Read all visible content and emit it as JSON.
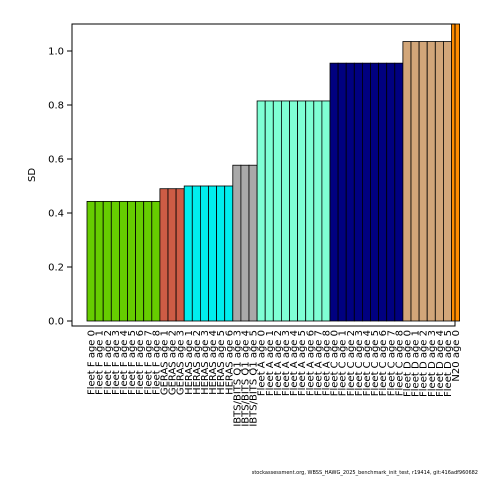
{
  "chart_data": {
    "type": "bar",
    "ylabel": "SD",
    "xlabel": "",
    "title": "",
    "ylim": [
      0,
      1.1
    ],
    "yticks": [
      "0.0",
      "0.2",
      "0.4",
      "0.6",
      "0.8",
      "1.0"
    ],
    "grid": false,
    "categories": [
      "Fleet F age 0",
      "Fleet F age 1",
      "Fleet F age 2",
      "Fleet F age 3",
      "Fleet F age 4",
      "Fleet F age 5",
      "Fleet F age 6",
      "Fleet F age 7",
      "Fleet F age 8",
      "GERAS age 1",
      "GERAS age 2",
      "GERAS age 3",
      "HERAS age 1",
      "HERAS age 2",
      "HERAS age 3",
      "HERAS age 4",
      "HERAS age 5",
      "HERAS age 6",
      "IBTS/BITS Q1 age 3",
      "IBTS/BITS Q1 age 4",
      "IBTS/BITS Q1 age 5",
      "Fleet A age 0",
      "Fleet A age 1",
      "Fleet A age 2",
      "Fleet A age 3",
      "Fleet A age 4",
      "Fleet A age 5",
      "Fleet A age 6",
      "Fleet A age 7",
      "Fleet A age 8",
      "Fleet C age 0",
      "Fleet C age 1",
      "Fleet C age 2",
      "Fleet C age 3",
      "Fleet C age 4",
      "Fleet C age 5",
      "Fleet C age 6",
      "Fleet C age 7",
      "Fleet C age 8",
      "Fleet D age 0",
      "Fleet D age 1",
      "Fleet D age 2",
      "Fleet D age 3",
      "Fleet D age 4",
      "Fleet D age 5",
      "N20 age 0"
    ],
    "groups": [
      {
        "count": 9,
        "value": 0.443,
        "color": "#66cd00"
      },
      {
        "count": 3,
        "value": 0.49,
        "color": "#cd5c45"
      },
      {
        "count": 6,
        "value": 0.5,
        "color": "#00eeee"
      },
      {
        "count": 3,
        "value": 0.577,
        "color": "#a9a9a9"
      },
      {
        "count": 9,
        "value": 0.815,
        "color": "#7fffd4"
      },
      {
        "count": 9,
        "value": 0.955,
        "color": "#000080"
      },
      {
        "count": 6,
        "value": 1.035,
        "color": "#d2a679"
      },
      {
        "count": 1,
        "value": 1.11,
        "color": "#ff8c00"
      }
    ]
  },
  "footer": "stockassessment.org, WBSS_HAWG_2025_benchmark_init_test, r19414, git:416adf960682"
}
